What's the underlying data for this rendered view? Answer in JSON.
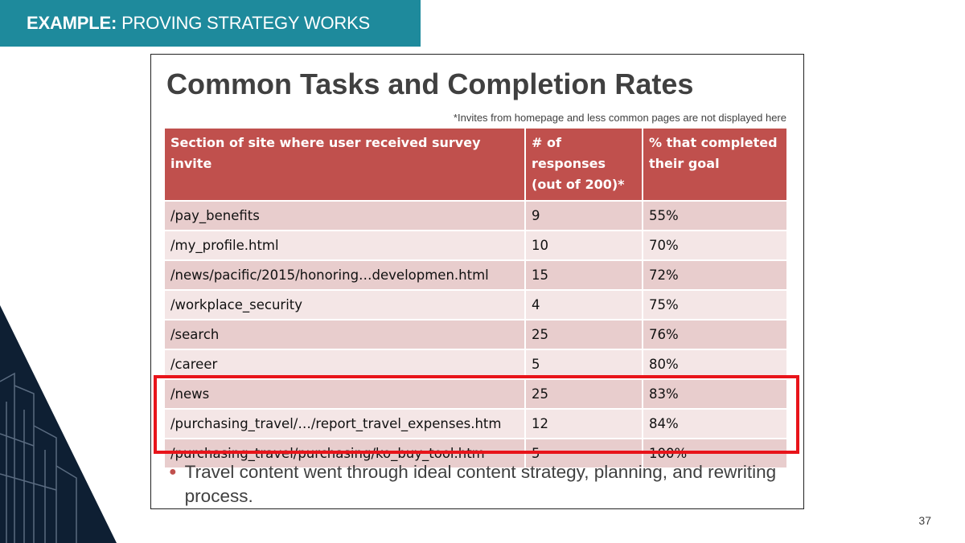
{
  "banner": {
    "label": "EXAMPLE:",
    "text": "PROVING STRATEGY WORKS",
    "color": "#1e8a9c"
  },
  "slide": {
    "title": "Common Tasks and Completion Rates",
    "footnote": "*Invites from homepage and less common pages are not displayed here",
    "table": {
      "headers": [
        "Section of site where user received survey invite",
        "# of responses (out of 200)*",
        "% that completed their goal"
      ],
      "rows": [
        [
          "/pay_benefits",
          "9",
          "55%"
        ],
        [
          "/my_profile.html",
          "10",
          "70%"
        ],
        [
          "/news/pacific/2015/honoring…developmen.html",
          "15",
          "72%"
        ],
        [
          "/workplace_security",
          "4",
          "75%"
        ],
        [
          "/search",
          "25",
          "76%"
        ],
        [
          "/career",
          "5",
          "80%"
        ],
        [
          "/news",
          "25",
          "83%"
        ],
        [
          "/purchasing_travel/…/report_travel_expenses.htm",
          "12",
          "84%"
        ],
        [
          "/purchasing_travel/purchasing/ko_buy_tool.htm",
          "5",
          "100%"
        ]
      ],
      "header_color": "#c0504d",
      "row_colors": [
        "#e8cdcd",
        "#f4e6e6"
      ]
    },
    "bullet": "Travel content went through ideal content strategy, planning, and rewriting process.",
    "highlight_color": "#e8141a"
  },
  "page_number": "37",
  "icons": {
    "bullet": "bullet-dot-icon",
    "decoration": "city-outline-art"
  }
}
